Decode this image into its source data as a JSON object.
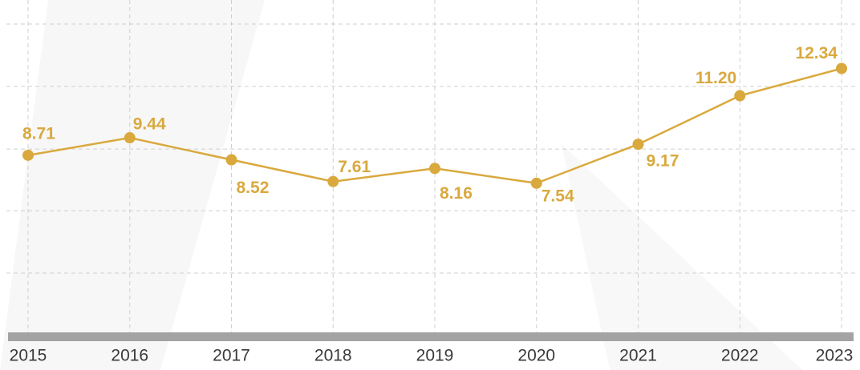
{
  "chart_data": {
    "type": "line",
    "categories": [
      "2015",
      "2016",
      "2017",
      "2018",
      "2019",
      "2020",
      "2021",
      "2022",
      "2023"
    ],
    "series": [
      {
        "color": "#d9a93d",
        "values": [
          8.71,
          9.44,
          8.52,
          7.61,
          8.16,
          7.54,
          9.17,
          11.2,
          12.34
        ],
        "value_labels": [
          "8.71",
          "9.44",
          "8.52",
          "7.61",
          "8.16",
          "7.54",
          "9.17",
          "11.20",
          "12.34"
        ]
      }
    ],
    "ylim": [
      1.3,
      14.2
    ],
    "yticks": [
      3.78,
      6.39,
      8.97,
      11.59,
      14.2
    ],
    "grid": true
  }
}
